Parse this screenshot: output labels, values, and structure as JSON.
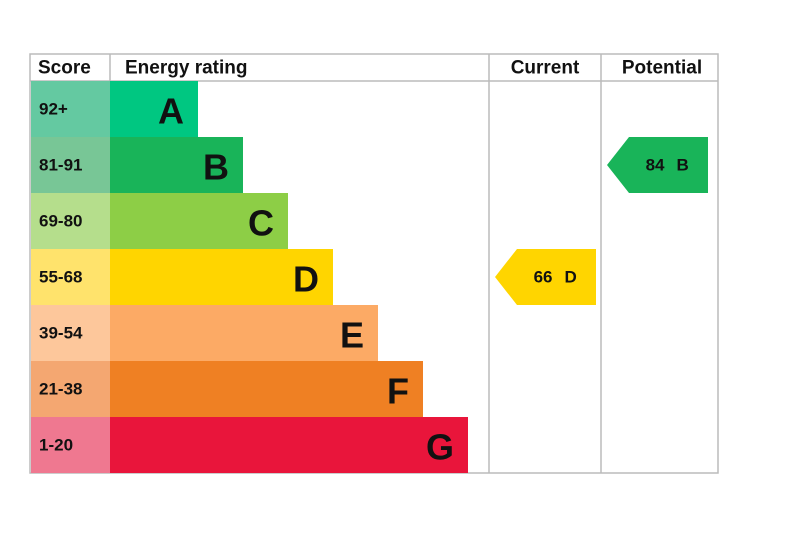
{
  "headers": {
    "score": "Score",
    "rating": "Energy rating",
    "current": "Current",
    "potential": "Potential"
  },
  "bands": [
    {
      "score": "92+",
      "letter": "A",
      "color": "#00c781",
      "score_color": "#64c9a1"
    },
    {
      "score": "81-91",
      "letter": "B",
      "color": "#19b459",
      "score_color": "#78c696"
    },
    {
      "score": "69-80",
      "letter": "C",
      "color": "#8dce46",
      "score_color": "#b5de8c"
    },
    {
      "score": "55-68",
      "letter": "D",
      "color": "#ffd500",
      "score_color": "#ffe36c"
    },
    {
      "score": "39-54",
      "letter": "E",
      "color": "#fcaa65",
      "score_color": "#fdc79b"
    },
    {
      "score": "21-38",
      "letter": "F",
      "color": "#ef8023",
      "score_color": "#f4a771"
    },
    {
      "score": "1-20",
      "letter": "G",
      "color": "#e9153b",
      "score_color": "#ef7890"
    }
  ],
  "current": {
    "value": 66,
    "letter": "D"
  },
  "potential": {
    "value": 84,
    "letter": "B"
  }
}
